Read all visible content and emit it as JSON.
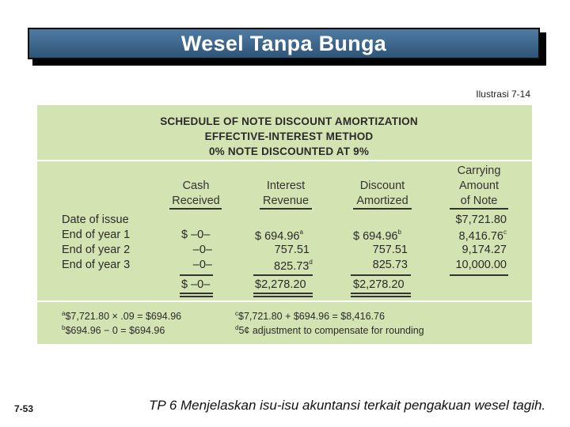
{
  "slide": {
    "title": "Wesel Tanpa Bunga",
    "illustration": "Ilustrasi 7-14",
    "page_number": "7-53",
    "footer": "TP 6  Menjelaskan isu-isu akuntansi terkait pengakuan wesel tagih."
  },
  "schedule": {
    "heading": [
      "SCHEDULE OF NOTE DISCOUNT AMORTIZATION",
      "EFFECTIVE-INTEREST METHOD",
      "0% NOTE DISCOUNTED AT 9%"
    ],
    "columns": {
      "cash": [
        "Cash",
        "Received"
      ],
      "interest": [
        "Interest",
        "Revenue"
      ],
      "discount": [
        "Discount",
        "Amortized"
      ],
      "carrying": [
        "Carrying",
        "Amount",
        "of Note"
      ]
    },
    "rows": [
      {
        "label": "Date of issue",
        "cash": "",
        "interest": "",
        "discount": "",
        "carrying": "$7,721.80",
        "int_sup": "",
        "disc_sup": "",
        "carry_sup": ""
      },
      {
        "label": "End of year 1",
        "cash": "$  –0–",
        "interest": "$   694.96",
        "discount": "$   694.96",
        "carrying": "8,416.76",
        "int_sup": "a",
        "disc_sup": "b",
        "carry_sup": "c"
      },
      {
        "label": "End of year 2",
        "cash": "–0–",
        "interest": "757.51",
        "discount": "757.51",
        "carrying": "9,174.27",
        "int_sup": "",
        "disc_sup": "",
        "carry_sup": ""
      },
      {
        "label": "End of year 3",
        "cash": "–0–",
        "interest": "825.73",
        "discount": "825.73",
        "carrying": "10,000.00",
        "int_sup": "d",
        "disc_sup": "",
        "carry_sup": ""
      }
    ],
    "totals": {
      "cash": "$  –0–",
      "interest": "$2,278.20",
      "discount": "$2,278.20"
    },
    "notes": {
      "a": {
        "mark": "a",
        "text": "$7,721.80 × .09 = $694.96"
      },
      "b": {
        "mark": "b",
        "text": "$694.96 − 0 = $694.96"
      },
      "c": {
        "mark": "c",
        "text": "$7,721.80 + $694.96 = $8,416.76"
      },
      "d": {
        "mark": "d",
        "text": "5¢ adjustment to compensate for rounding"
      }
    }
  }
}
